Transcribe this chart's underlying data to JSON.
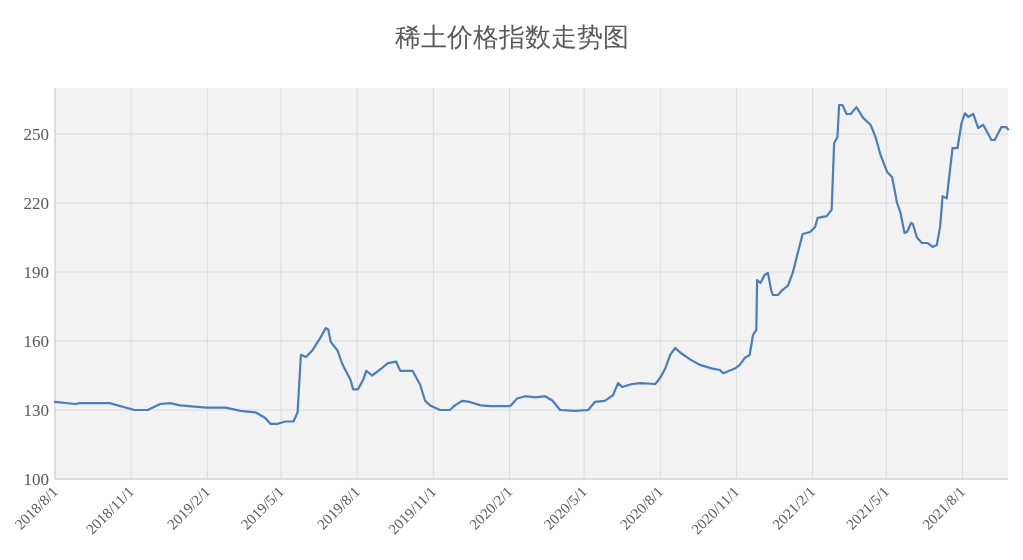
{
  "chart_data": {
    "type": "line",
    "title": "稀土价格指数走势图",
    "x": [
      "2018-08-01",
      "2018-08-25",
      "2018-08-31",
      "2018-10-06",
      "2018-10-26",
      "2018-11-05",
      "2018-11-21",
      "2018-12-06",
      "2018-12-18",
      "2018-12-30",
      "2019-01-31",
      "2019-02-23",
      "2019-03-13",
      "2019-03-31",
      "2019-04-12",
      "2019-04-18",
      "2019-04-27",
      "2019-05-06",
      "2019-05-16",
      "2019-05-21",
      "2019-05-25",
      "2019-05-31",
      "2019-06-08",
      "2019-06-18",
      "2019-06-24",
      "2019-06-27",
      "2019-06-30",
      "2019-07-08",
      "2019-07-14",
      "2019-07-24",
      "2019-07-27",
      "2019-08-02",
      "2019-08-08",
      "2019-08-12",
      "2019-08-19",
      "2019-08-30",
      "2019-09-07",
      "2019-09-17",
      "2019-09-22",
      "2019-10-07",
      "2019-10-16",
      "2019-10-22",
      "2019-10-28",
      "2019-11-09",
      "2019-11-21",
      "2019-11-27",
      "2019-12-06",
      "2019-12-15",
      "2019-12-28",
      "2020-01-09",
      "2020-02-02",
      "2020-02-10",
      "2020-02-20",
      "2020-03-03",
      "2020-03-15",
      "2020-03-24",
      "2020-04-02",
      "2020-04-20",
      "2020-05-06",
      "2020-05-14",
      "2020-05-26",
      "2020-06-05",
      "2020-06-11",
      "2020-06-16",
      "2020-06-28",
      "2020-07-08",
      "2020-07-26",
      "2020-08-01",
      "2020-08-07",
      "2020-08-13",
      "2020-08-19",
      "2020-08-25",
      "2020-09-06",
      "2020-09-18",
      "2020-10-03",
      "2020-10-12",
      "2020-10-16",
      "2020-10-30",
      "2020-11-05",
      "2020-11-11",
      "2020-11-17",
      "2020-11-21",
      "2020-11-25",
      "2020-11-26",
      "2020-11-30",
      "2020-12-05",
      "2020-12-09",
      "2020-12-13",
      "2020-12-15",
      "2020-12-21",
      "2020-12-26",
      "2021-01-02",
      "2021-01-08",
      "2021-01-15",
      "2021-01-20",
      "2021-01-29",
      "2021-02-04",
      "2021-02-07",
      "2021-02-18",
      "2021-02-24",
      "2021-02-27",
      "2021-03-03",
      "2021-03-05",
      "2021-03-09",
      "2021-03-14",
      "2021-03-19",
      "2021-03-26",
      "2021-04-03",
      "2021-04-12",
      "2021-04-18",
      "2021-04-24",
      "2021-05-02",
      "2021-05-08",
      "2021-05-14",
      "2021-05-18",
      "2021-05-23",
      "2021-05-26",
      "2021-05-31",
      "2021-06-02",
      "2021-06-07",
      "2021-06-13",
      "2021-06-20",
      "2021-06-26",
      "2021-07-01",
      "2021-07-05",
      "2021-07-08",
      "2021-07-13",
      "2021-07-20",
      "2021-07-26",
      "2021-07-31",
      "2021-08-04",
      "2021-08-08",
      "2021-08-14",
      "2021-08-20",
      "2021-08-26",
      "2021-09-05",
      "2021-09-09",
      "2021-09-17",
      "2021-09-23",
      "2021-09-25"
    ],
    "series": [
      {
        "color": "#4a7ebb",
        "values": [
          133.5,
          132.6,
          133,
          133,
          131,
          130,
          130,
          132.6,
          133,
          132,
          131,
          131,
          129.6,
          129,
          126.5,
          124,
          124,
          125,
          125,
          129,
          154,
          153,
          156,
          161.7,
          165.6,
          165,
          159.6,
          156,
          150,
          143,
          139,
          139,
          143,
          147,
          145,
          148,
          150.4,
          151,
          147,
          147,
          141,
          134,
          132,
          130,
          130,
          132,
          134,
          133.5,
          132,
          131.7,
          131.7,
          135,
          136,
          135.5,
          136,
          134,
          130,
          129.6,
          130,
          133.5,
          134,
          136.5,
          141.7,
          140,
          141.3,
          141.7,
          141.3,
          144,
          148,
          154,
          157,
          155,
          152,
          149.6,
          148,
          147.4,
          146,
          148,
          149.6,
          152.6,
          154,
          162.6,
          164.8,
          186.5,
          185.2,
          188.7,
          189.6,
          182,
          180,
          180,
          182,
          184,
          189.6,
          199.6,
          206.5,
          207.4,
          209.6,
          213.5,
          214.3,
          217,
          246,
          248.7,
          262.6,
          262.6,
          258.7,
          258.7,
          261.7,
          257,
          254,
          248.7,
          240.9,
          233.5,
          231.3,
          220,
          216,
          207,
          207.4,
          211.3,
          211,
          205,
          202.6,
          202.6,
          200.9,
          201.7,
          209.6,
          223,
          222,
          243.9,
          243.9,
          255,
          259,
          257.4,
          258.7,
          252.6,
          254,
          247.4,
          247.4,
          253,
          253,
          252
        ]
      }
    ],
    "xlim": [
      "2018-08-01",
      "2021-09-25"
    ],
    "xticks": [
      {
        "value": "2018-08-01",
        "label": "2018/8/1"
      },
      {
        "value": "2018-11-01",
        "label": "2018/11/1"
      },
      {
        "value": "2019-02-01",
        "label": "2019/2/1"
      },
      {
        "value": "2019-05-01",
        "label": "2019/5/1"
      },
      {
        "value": "2019-08-01",
        "label": "2019/8/1"
      },
      {
        "value": "2019-11-01",
        "label": "2019/11/1"
      },
      {
        "value": "2020-02-01",
        "label": "2020/2/1"
      },
      {
        "value": "2020-05-01",
        "label": "2020/5/1"
      },
      {
        "value": "2020-08-01",
        "label": "2020/8/1"
      },
      {
        "value": "2020-11-01",
        "label": "2020/11/1"
      },
      {
        "value": "2021-02-01",
        "label": "2021/2/1"
      },
      {
        "value": "2021-05-01",
        "label": "2021/5/1"
      },
      {
        "value": "2021-08-01",
        "label": "2021/8/1"
      }
    ],
    "ylim": [
      100,
      270
    ],
    "yticks": [
      100,
      130,
      160,
      190,
      220,
      250
    ],
    "grid": true,
    "marker": "none",
    "line_style": "solid"
  }
}
